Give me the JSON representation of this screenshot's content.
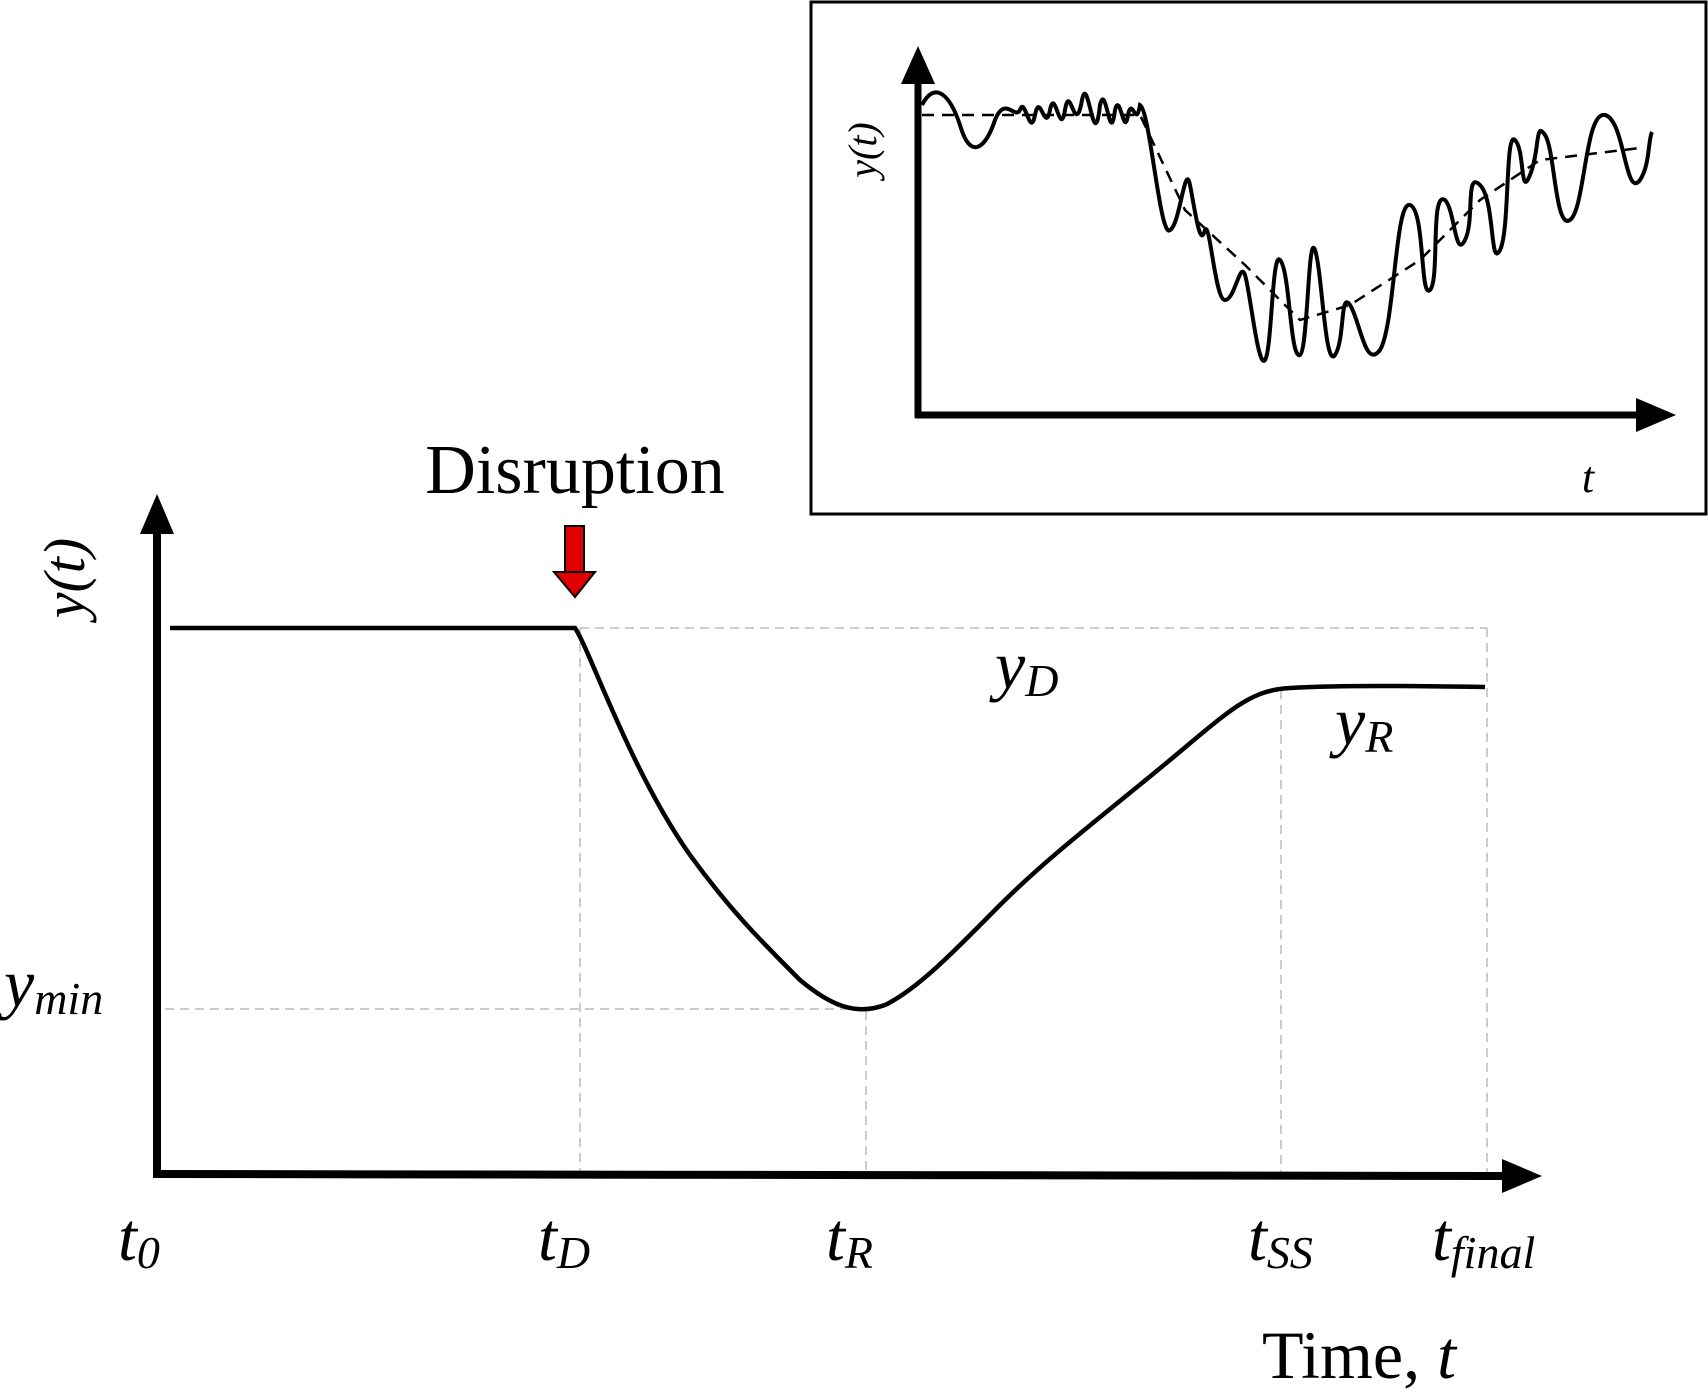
{
  "main": {
    "annotation": "Disruption",
    "y_axis_label": "y(t)",
    "x_axis_label": {
      "text": "Time, ",
      "var": "t"
    },
    "ticks": [
      {
        "base": "t",
        "sub": "0"
      },
      {
        "base": "t",
        "sub": "D"
      },
      {
        "base": "t",
        "sub": "R"
      },
      {
        "base": "t",
        "sub": "SS"
      },
      {
        "base": "t",
        "sub": "final"
      }
    ],
    "y_markers": {
      "ymin": {
        "base": "y",
        "sub": "min"
      },
      "yD": {
        "base": "y",
        "sub": "D"
      },
      "yR": {
        "base": "y",
        "sub": "R"
      }
    }
  },
  "inset": {
    "y_axis_label": "y(t)",
    "x_axis_label": "t"
  },
  "colors": {
    "arrow": "#e00000",
    "curve": "#000000",
    "guide": "#bbbbbb"
  }
}
